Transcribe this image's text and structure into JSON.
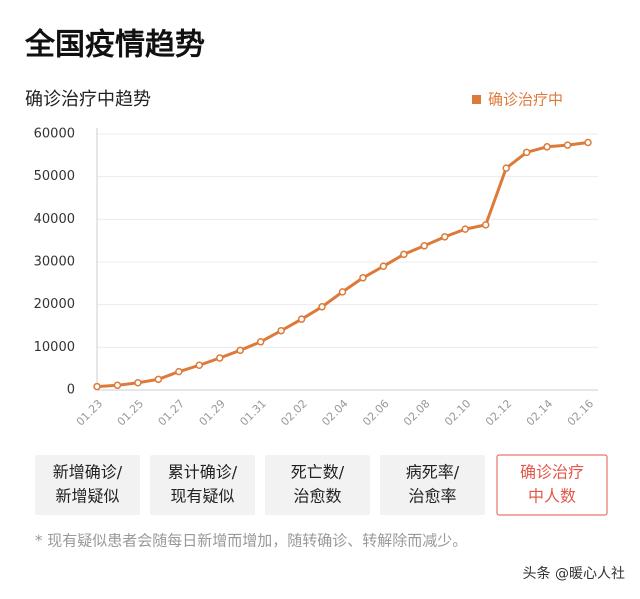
{
  "header": {
    "title": "全国疫情趋势"
  },
  "chart_data": {
    "type": "line",
    "title": "确诊治疗中趋势",
    "categories": [
      "01.23",
      null,
      "01.25",
      null,
      "01.27",
      null,
      "01.29",
      null,
      "01.31",
      null,
      "02.02",
      null,
      "02.04",
      null,
      "02.06",
      null,
      "02.08",
      null,
      "02.10",
      null,
      "02.12",
      null,
      "02.14",
      null,
      "02.16"
    ],
    "series": [
      {
        "name": "确诊治疗中",
        "color": "#dd7a3a",
        "values": [
          800,
          1100,
          1700,
          2500,
          4300,
          5800,
          7500,
          9300,
          11300,
          13900,
          16600,
          19500,
          23000,
          26300,
          29000,
          31800,
          33800,
          35900,
          37700,
          38700,
          52000,
          55700,
          57000,
          57400,
          58000
        ]
      }
    ],
    "ylim": [
      0,
      60000
    ],
    "yticks": [
      0,
      10000,
      20000,
      30000,
      40000,
      50000,
      60000
    ],
    "grid": true,
    "legend": "top-right"
  },
  "tabs": [
    [
      "新增确诊/",
      "新增疑似"
    ],
    [
      "累计确诊/",
      "现有疑似"
    ],
    [
      "死亡数/",
      "治愈数"
    ],
    [
      "病死率/",
      "治愈率"
    ],
    [
      "确诊治疗",
      "中人数"
    ]
  ],
  "footnote": "* 现有疑似患者会随每日新增而增加，随转确诊、转解除而减少。",
  "watermark": "头条 @暖心人社"
}
